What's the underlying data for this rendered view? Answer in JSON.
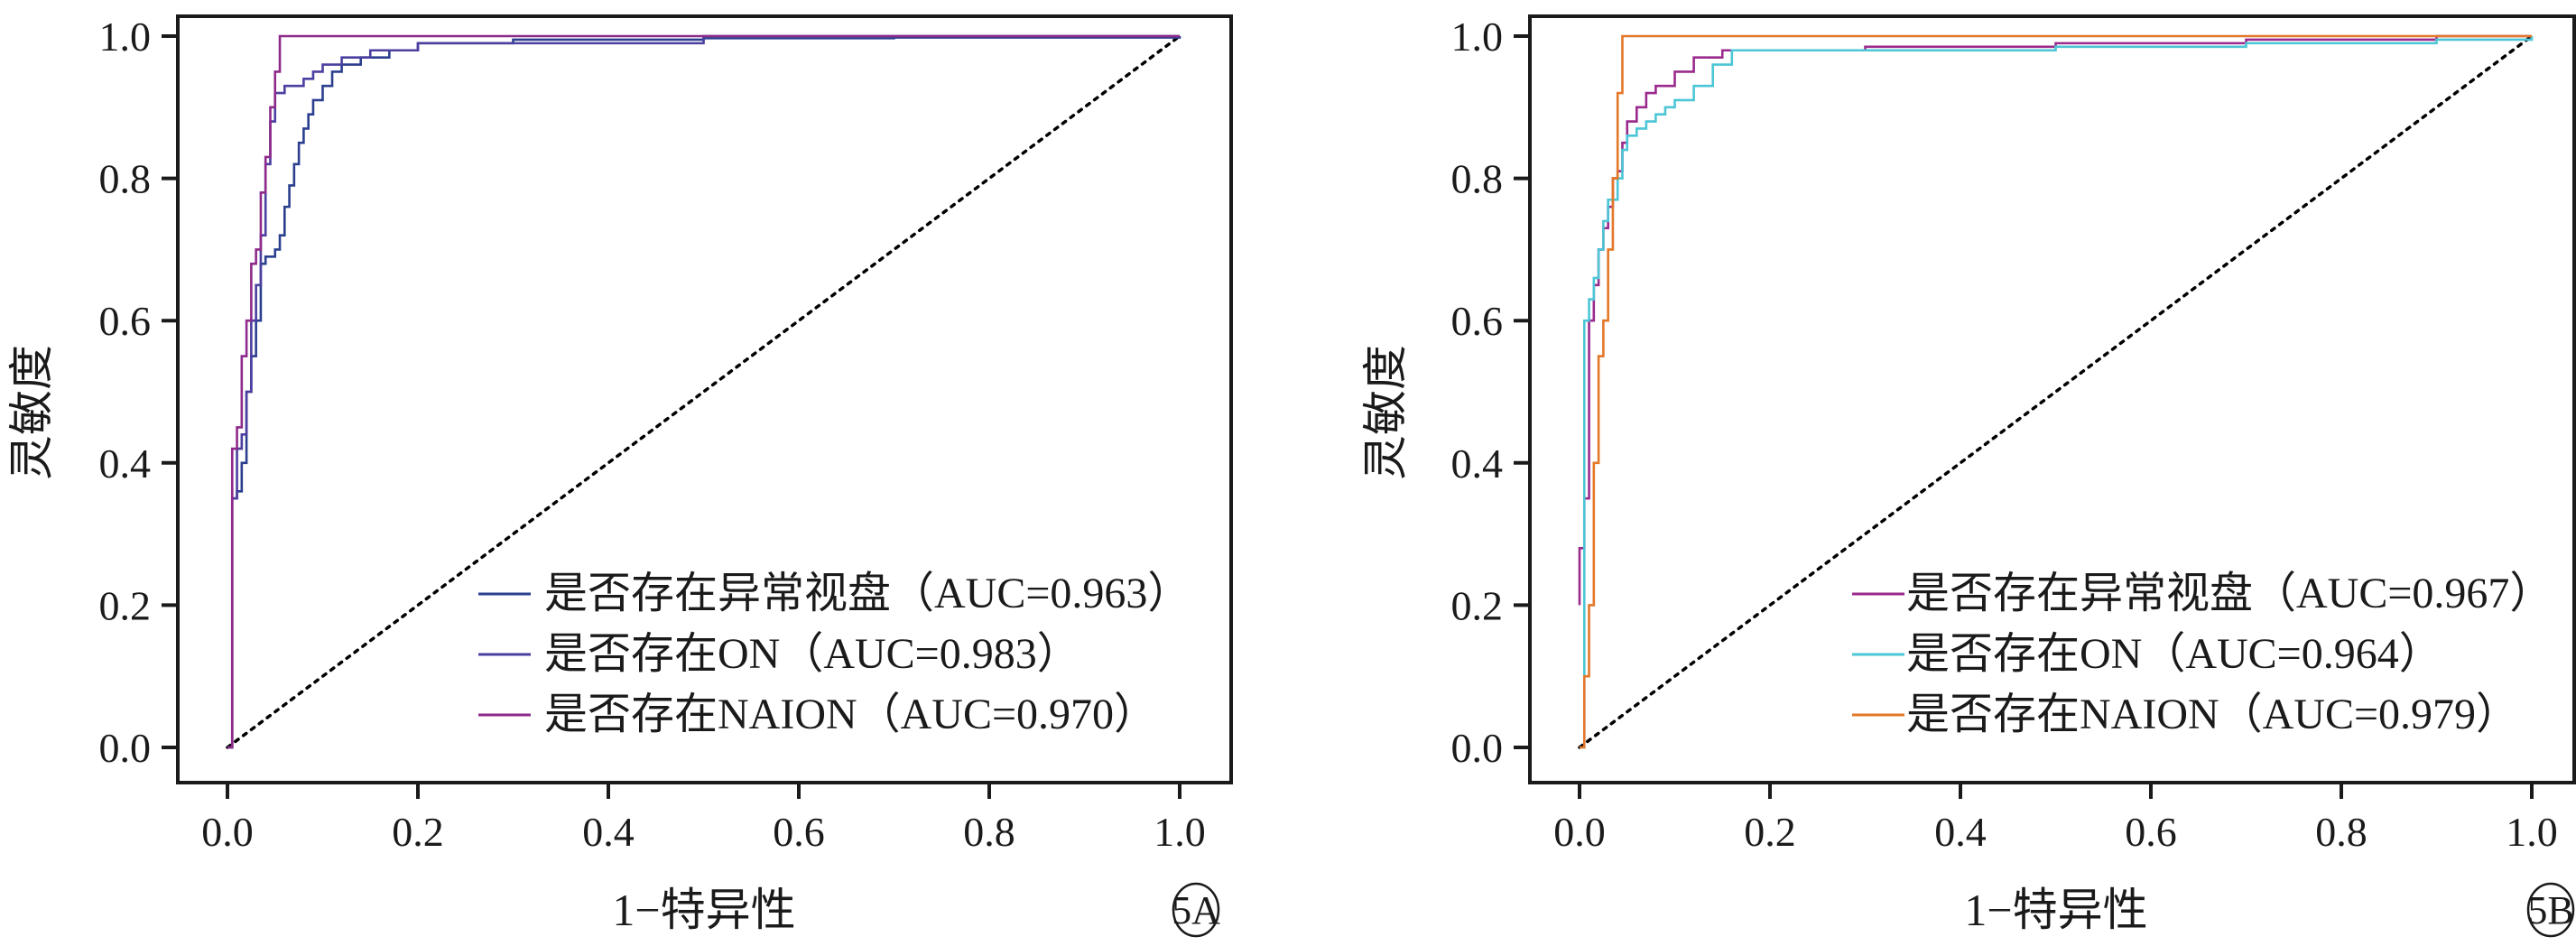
{
  "chart_data": [
    {
      "type": "line",
      "panel_label": "5A",
      "xlabel": "1−特异性",
      "ylabel": "灵敏度",
      "xlim": [
        0,
        1.0
      ],
      "ylim": [
        0,
        1.0
      ],
      "x_ticks": [
        "0.0",
        "0.2",
        "0.4",
        "0.6",
        "0.8",
        "1.0"
      ],
      "y_ticks": [
        "0.0",
        "0.2",
        "0.4",
        "0.6",
        "0.8",
        "1.0"
      ],
      "grid": false,
      "legend_position": "bottom-right",
      "reference_line": {
        "style": "dotted",
        "color": "#000000",
        "from": [
          0,
          0
        ],
        "to": [
          1,
          1
        ]
      },
      "series": [
        {
          "name": "是否存在异常视盘（AUC=0.963）",
          "color": "#2b3f8f",
          "points": [
            [
              0,
              0
            ],
            [
              0.005,
              0.02
            ],
            [
              0.005,
              0.35
            ],
            [
              0.01,
              0.36
            ],
            [
              0.015,
              0.4
            ],
            [
              0.02,
              0.42
            ],
            [
              0.02,
              0.5
            ],
            [
              0.025,
              0.55
            ],
            [
              0.03,
              0.6
            ],
            [
              0.035,
              0.68
            ],
            [
              0.04,
              0.69
            ],
            [
              0.05,
              0.7
            ],
            [
              0.055,
              0.72
            ],
            [
              0.06,
              0.76
            ],
            [
              0.065,
              0.79
            ],
            [
              0.07,
              0.82
            ],
            [
              0.075,
              0.85
            ],
            [
              0.08,
              0.87
            ],
            [
              0.085,
              0.89
            ],
            [
              0.09,
              0.91
            ],
            [
              0.1,
              0.93
            ],
            [
              0.11,
              0.95
            ],
            [
              0.12,
              0.96
            ],
            [
              0.14,
              0.97
            ],
            [
              0.17,
              0.98
            ],
            [
              0.2,
              0.99
            ],
            [
              0.3,
              0.995
            ],
            [
              0.5,
              0.997
            ],
            [
              0.7,
              0.998
            ],
            [
              1,
              1
            ]
          ]
        },
        {
          "name": "是否存在ON（AUC=0.983）",
          "color": "#4b3fa0",
          "points": [
            [
              0,
              0
            ],
            [
              0.005,
              0.1
            ],
            [
              0.005,
              0.35
            ],
            [
              0.01,
              0.42
            ],
            [
              0.015,
              0.44
            ],
            [
              0.02,
              0.5
            ],
            [
              0.025,
              0.6
            ],
            [
              0.03,
              0.65
            ],
            [
              0.035,
              0.72
            ],
            [
              0.04,
              0.82
            ],
            [
              0.045,
              0.88
            ],
            [
              0.05,
              0.92
            ],
            [
              0.06,
              0.93
            ],
            [
              0.08,
              0.94
            ],
            [
              0.09,
              0.95
            ],
            [
              0.1,
              0.96
            ],
            [
              0.12,
              0.97
            ],
            [
              0.15,
              0.98
            ],
            [
              0.2,
              0.99
            ],
            [
              0.5,
              1.0
            ],
            [
              1,
              1
            ]
          ]
        },
        {
          "name": "是否存在NAION（AUC=0.970）",
          "color": "#8e2a8a",
          "points": [
            [
              0,
              0
            ],
            [
              0.005,
              0.05
            ],
            [
              0.005,
              0.42
            ],
            [
              0.01,
              0.45
            ],
            [
              0.015,
              0.55
            ],
            [
              0.02,
              0.6
            ],
            [
              0.025,
              0.68
            ],
            [
              0.03,
              0.7
            ],
            [
              0.035,
              0.78
            ],
            [
              0.04,
              0.83
            ],
            [
              0.045,
              0.9
            ],
            [
              0.05,
              0.95
            ],
            [
              0.055,
              1.0
            ],
            [
              1,
              1
            ]
          ]
        }
      ]
    },
    {
      "type": "line",
      "panel_label": "5B",
      "xlabel": "1−特异性",
      "ylabel": "灵敏度",
      "xlim": [
        0,
        1.0
      ],
      "ylim": [
        0,
        1.0
      ],
      "x_ticks": [
        "0.0",
        "0.2",
        "0.4",
        "0.6",
        "0.8",
        "1.0"
      ],
      "y_ticks": [
        "0.0",
        "0.2",
        "0.4",
        "0.6",
        "0.8",
        "1.0"
      ],
      "grid": false,
      "legend_position": "bottom-right",
      "reference_line": {
        "style": "dotted",
        "color": "#000000",
        "from": [
          0,
          0
        ],
        "to": [
          1,
          1
        ]
      },
      "series": [
        {
          "name": "是否存在异常视盘（AUC=0.967）",
          "color": "#9a2a8c",
          "points": [
            [
              0,
              0.2
            ],
            [
              0,
              0.28
            ],
            [
              0.005,
              0.35
            ],
            [
              0.01,
              0.6
            ],
            [
              0.015,
              0.65
            ],
            [
              0.02,
              0.7
            ],
            [
              0.025,
              0.73
            ],
            [
              0.03,
              0.76
            ],
            [
              0.035,
              0.8
            ],
            [
              0.04,
              0.81
            ],
            [
              0.045,
              0.85
            ],
            [
              0.05,
              0.88
            ],
            [
              0.06,
              0.9
            ],
            [
              0.07,
              0.92
            ],
            [
              0.08,
              0.93
            ],
            [
              0.1,
              0.95
            ],
            [
              0.12,
              0.97
            ],
            [
              0.15,
              0.98
            ],
            [
              0.3,
              0.985
            ],
            [
              0.5,
              0.99
            ],
            [
              0.7,
              0.995
            ],
            [
              0.9,
              1.0
            ],
            [
              1,
              1
            ]
          ]
        },
        {
          "name": "是否存在ON（AUC=0.964）",
          "color": "#4cc6d6",
          "points": [
            [
              0,
              0
            ],
            [
              0.005,
              0.25
            ],
            [
              0.005,
              0.6
            ],
            [
              0.01,
              0.63
            ],
            [
              0.015,
              0.66
            ],
            [
              0.02,
              0.7
            ],
            [
              0.025,
              0.74
            ],
            [
              0.03,
              0.77
            ],
            [
              0.04,
              0.8
            ],
            [
              0.045,
              0.84
            ],
            [
              0.05,
              0.86
            ],
            [
              0.06,
              0.87
            ],
            [
              0.07,
              0.88
            ],
            [
              0.08,
              0.89
            ],
            [
              0.09,
              0.9
            ],
            [
              0.1,
              0.91
            ],
            [
              0.12,
              0.93
            ],
            [
              0.14,
              0.96
            ],
            [
              0.16,
              0.98
            ],
            [
              0.3,
              0.98
            ],
            [
              0.5,
              0.985
            ],
            [
              0.7,
              0.99
            ],
            [
              0.9,
              0.995
            ],
            [
              1,
              1
            ]
          ]
        },
        {
          "name": "是否存在NAION（AUC=0.979）",
          "color": "#e3782a",
          "points": [
            [
              0,
              0
            ],
            [
              0.005,
              0.1
            ],
            [
              0.01,
              0.2
            ],
            [
              0.015,
              0.4
            ],
            [
              0.02,
              0.55
            ],
            [
              0.025,
              0.6
            ],
            [
              0.03,
              0.7
            ],
            [
              0.035,
              0.8
            ],
            [
              0.04,
              0.92
            ],
            [
              0.045,
              1.0
            ],
            [
              1,
              1
            ]
          ]
        }
      ]
    }
  ]
}
